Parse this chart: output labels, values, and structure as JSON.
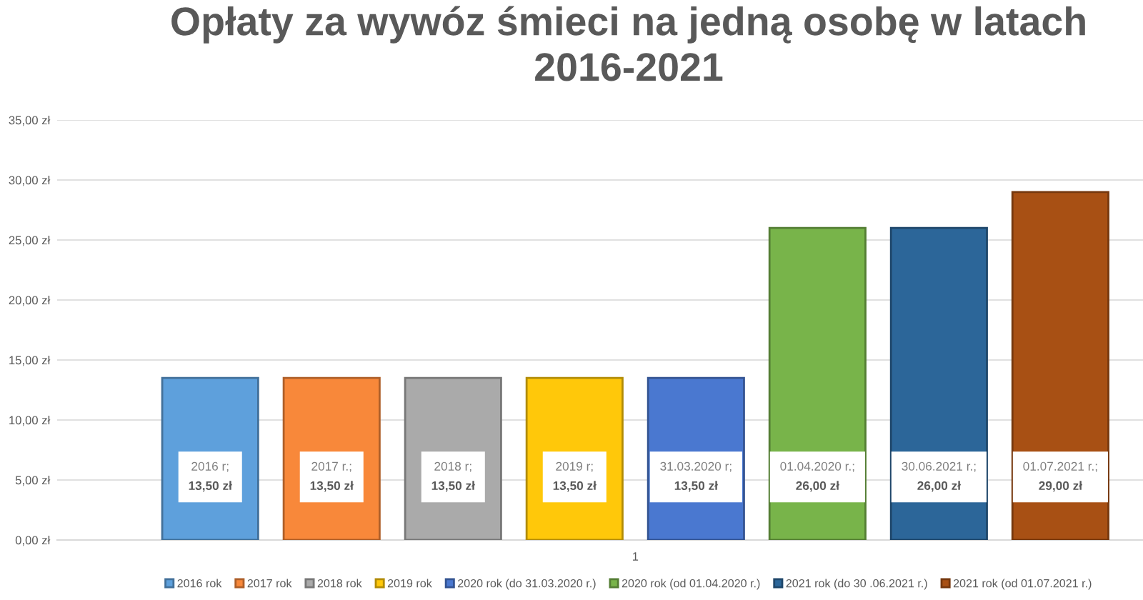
{
  "chart_data": {
    "type": "bar",
    "title": "Opłaty za wywóz śmieci na jedną osobę w latach\n2016-2021",
    "categories": [
      "1"
    ],
    "series": [
      {
        "name": "2016 rok",
        "color": "#5ea0dc",
        "values": [
          13.5
        ],
        "value_labels": [
          "2016 r;\n13,50 zł"
        ]
      },
      {
        "name": "2017 rok",
        "color": "#f8883a",
        "values": [
          13.5
        ],
        "value_labels": [
          "2017 r.;\n13,50 zł"
        ]
      },
      {
        "name": "2018 rok",
        "color": "#aaaaaa",
        "values": [
          13.5
        ],
        "value_labels": [
          "2018 r;\n13,50 zł"
        ]
      },
      {
        "name": "2019 rok",
        "color": "#ffc80a",
        "values": [
          13.5
        ],
        "value_labels": [
          "2019 r;\n13,50 zł"
        ]
      },
      {
        "name": "2020 rok (do 31.03.2020 r.)",
        "color": "#4a78d0",
        "values": [
          13.5
        ],
        "value_labels": [
          "31.03.2020 r;\n13,50 zł"
        ]
      },
      {
        "name": "2020 rok (od 01.04.2020 r.)",
        "color": "#78b44a",
        "values": [
          26
        ],
        "value_labels": [
          "01.04.2020 r.;\n26,00 zł"
        ]
      },
      {
        "name": "2021 rok (do 30 .06.2021 r.)",
        "color": "#2c6699",
        "values": [
          26
        ],
        "value_labels": [
          "30.06.2021 r.;\n26,00 zł"
        ]
      },
      {
        "name": "2021 rok (od 01.07.2021 r.)",
        "color": "#a85014",
        "values": [
          29
        ],
        "value_labels": [
          "01.07.2021 r.;\n29,00 zł"
        ]
      }
    ],
    "ylim": [
      0,
      35
    ],
    "yticks": [
      {
        "value": 0,
        "label": "0,00 zł"
      },
      {
        "value": 5,
        "label": "5,00 zł"
      },
      {
        "value": 10,
        "label": "10,00 zł"
      },
      {
        "value": 15,
        "label": "15,00 zł"
      },
      {
        "value": 20,
        "label": "20,00 zł"
      },
      {
        "value": 25,
        "label": "25,00 zł"
      },
      {
        "value": 30,
        "label": "30,00 zł"
      },
      {
        "value": 35,
        "label": "35,00 zł"
      }
    ],
    "grid": "y",
    "legend": "bottom"
  }
}
